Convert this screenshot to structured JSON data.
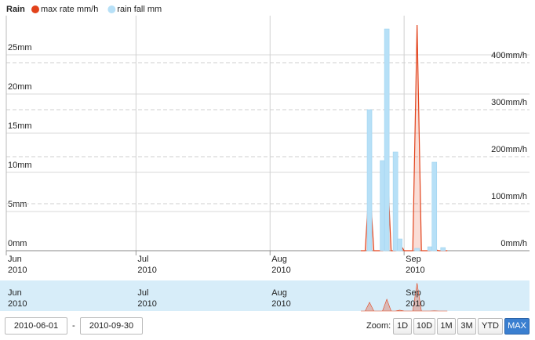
{
  "chart_data": {
    "type": "bar-line",
    "legend_title": "Rain",
    "x": [
      "2010-08-22",
      "2010-08-23",
      "2010-08-24",
      "2010-08-25",
      "2010-08-26",
      "2010-08-27",
      "2010-08-28",
      "2010-08-29",
      "2010-08-30",
      "2010-08-31",
      "2010-09-01",
      "2010-09-02",
      "2010-09-03",
      "2010-09-04",
      "2010-09-05",
      "2010-09-06",
      "2010-09-07",
      "2010-09-08",
      "2010-09-09",
      "2010-09-10",
      "2010-09-11"
    ],
    "series": [
      {
        "name": "max rate mm/h",
        "color": "#e2421b",
        "type": "area",
        "axis": "y2",
        "values": [
          0,
          0,
          150,
          0,
          0,
          0,
          203,
          0,
          0,
          15,
          0,
          0,
          0,
          480,
          0,
          0,
          0,
          3,
          0,
          0,
          0
        ]
      },
      {
        "name": "rain fall mm",
        "color": "#b7e0f7",
        "type": "bar",
        "values": [
          0,
          0,
          18,
          0,
          0,
          11.5,
          28.3,
          0,
          12.6,
          1.5,
          0,
          0,
          0,
          0.3,
          0,
          0,
          0.5,
          11.3,
          0,
          0.4,
          0
        ]
      }
    ],
    "xlim": [
      "2010-06-01",
      "2010-09-30"
    ],
    "xticks": [
      {
        "value": "2010-06-01",
        "label": "Jun 2010"
      },
      {
        "value": "2010-07-01",
        "label": "Jul 2010"
      },
      {
        "value": "2010-08-01",
        "label": "Aug 2010"
      },
      {
        "value": "2010-09-01",
        "label": "Sep 2010"
      }
    ],
    "ylim": [
      0,
      30
    ],
    "yticks": [
      {
        "value": 0,
        "label": "0mm"
      },
      {
        "value": 5,
        "label": "5mm"
      },
      {
        "value": 10,
        "label": "10mm"
      },
      {
        "value": 15,
        "label": "15mm"
      },
      {
        "value": 20,
        "label": "20mm"
      },
      {
        "value": 25,
        "label": "25mm"
      }
    ],
    "y2lim": [
      0,
      500
    ],
    "y2ticks": [
      {
        "value": 0,
        "label": "0mm/h"
      },
      {
        "value": 100,
        "label": "100mm/h"
      },
      {
        "value": 200,
        "label": "200mm/h"
      },
      {
        "value": 300,
        "label": "300mm/h"
      },
      {
        "value": 400,
        "label": "400mm/h"
      }
    ],
    "grid": true
  },
  "range_selector": {
    "from": "2010-06-01",
    "separator": "-",
    "to": "2010-09-30",
    "zoom_label": "Zoom:",
    "buttons": [
      "1D",
      "10D",
      "1M",
      "3M",
      "YTD",
      "MAX"
    ],
    "active": "MAX"
  }
}
